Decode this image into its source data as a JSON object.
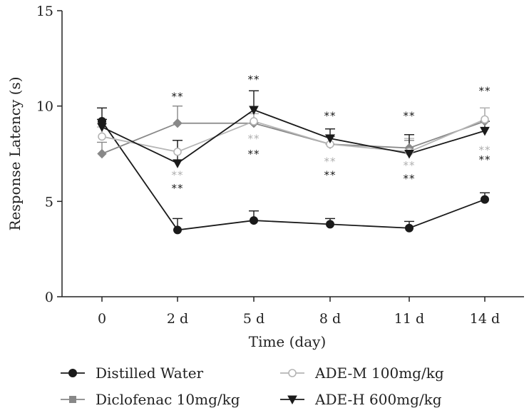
{
  "chart_data": {
    "type": "line",
    "title": "",
    "xlabel": "Time (day)",
    "ylabel": "Response Latency (s)",
    "categories": [
      "0",
      "2 d",
      "5 d",
      "8 d",
      "11 d",
      "14 d"
    ],
    "ylim": [
      0,
      15
    ],
    "yticks": [
      0,
      5,
      10,
      15
    ],
    "grid": false,
    "legend_position": "bottom",
    "series": [
      {
        "name": "Distilled Water",
        "color": "#1a1a1a",
        "marker": "circle-filled",
        "values": [
          9.2,
          3.5,
          4.0,
          3.8,
          3.6,
          5.1
        ],
        "errors": [
          0.7,
          0.6,
          0.5,
          0.3,
          0.35,
          0.35
        ]
      },
      {
        "name": "Diclofenac 10mg/kg",
        "color": "#888888",
        "marker": "diamond",
        "values": [
          7.5,
          9.1,
          9.1,
          8.0,
          7.8,
          9.2
        ],
        "errors": [
          0.6,
          0.9,
          0.5,
          0.4,
          0.4,
          0.7
        ]
      },
      {
        "name": "ADE-M 100mg/kg",
        "color": "#b5b5b5",
        "marker": "circle-open",
        "values": [
          8.4,
          7.6,
          9.2,
          8.0,
          7.6,
          9.3
        ],
        "errors": [
          0.5,
          0.6,
          0.4,
          0.5,
          0.7,
          0.6
        ]
      },
      {
        "name": "ADE-H 600mg/kg",
        "color": "#1a1a1a",
        "marker": "triangle-down",
        "values": [
          8.9,
          7.0,
          9.8,
          8.3,
          7.5,
          8.7
        ],
        "errors": [
          0.4,
          1.2,
          1.0,
          0.5,
          1.0,
          0.5
        ]
      }
    ],
    "annotations": [
      {
        "category": "2 d",
        "y": 10.3,
        "text": "**",
        "color": "#1a1a1a"
      },
      {
        "category": "2 d",
        "y": 6.2,
        "text": "**",
        "color": "#b0b0b0"
      },
      {
        "category": "2 d",
        "y": 5.5,
        "text": "**",
        "color": "#1a1a1a"
      },
      {
        "category": "5 d",
        "y": 11.2,
        "text": "**",
        "color": "#1a1a1a"
      },
      {
        "category": "5 d",
        "y": 8.1,
        "text": "**",
        "color": "#b0b0b0"
      },
      {
        "category": "5 d",
        "y": 7.3,
        "text": "**",
        "color": "#1a1a1a"
      },
      {
        "category": "8 d",
        "y": 9.3,
        "text": "**",
        "color": "#1a1a1a"
      },
      {
        "category": "8 d",
        "y": 6.9,
        "text": "**",
        "color": "#b0b0b0"
      },
      {
        "category": "8 d",
        "y": 6.2,
        "text": "**",
        "color": "#1a1a1a"
      },
      {
        "category": "11 d",
        "y": 9.3,
        "text": "**",
        "color": "#1a1a1a"
      },
      {
        "category": "11 d",
        "y": 6.7,
        "text": "**",
        "color": "#b0b0b0"
      },
      {
        "category": "11 d",
        "y": 6.0,
        "text": "**",
        "color": "#1a1a1a"
      },
      {
        "category": "14 d",
        "y": 10.6,
        "text": "**",
        "color": "#1a1a1a"
      },
      {
        "category": "14 d",
        "y": 7.5,
        "text": "**",
        "color": "#b0b0b0"
      },
      {
        "category": "14 d",
        "y": 7.0,
        "text": "**",
        "color": "#1a1a1a"
      }
    ]
  }
}
